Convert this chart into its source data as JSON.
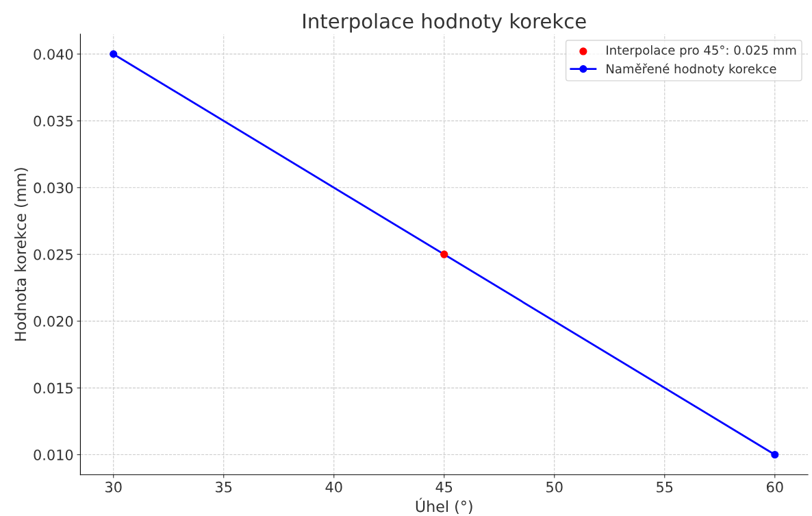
{
  "chart_data": {
    "type": "line",
    "title": "Interpolace hodnoty korekce",
    "xlabel": "Úhel (°)",
    "ylabel": "Hodnota korekce (mm)",
    "series": [
      {
        "name": "Interpolace pro 45°: 0.025 mm",
        "type": "scatter",
        "color": "#ff0000",
        "x": [
          45
        ],
        "values": [
          0.025
        ]
      },
      {
        "name": "Naměřené hodnoty korekce",
        "color": "#0000ff",
        "x": [
          30,
          60
        ],
        "values": [
          0.04,
          0.01
        ]
      }
    ],
    "xlim": [
      28.5,
      61.5
    ],
    "ylim": [
      0.0085,
      0.0415
    ],
    "xticks": [
      30,
      35,
      40,
      45,
      50,
      55,
      60
    ],
    "yticks": [
      {
        "value": 0.01,
        "label": "0.010"
      },
      {
        "value": 0.015,
        "label": "0.015"
      },
      {
        "value": 0.02,
        "label": "0.020"
      },
      {
        "value": 0.025,
        "label": "0.025"
      },
      {
        "value": 0.03,
        "label": "0.030"
      },
      {
        "value": 0.035,
        "label": "0.035"
      },
      {
        "value": 0.04,
        "label": "0.040"
      }
    ],
    "grid": true,
    "legend": "top right",
    "marker": "circle",
    "line_style": "solid"
  }
}
